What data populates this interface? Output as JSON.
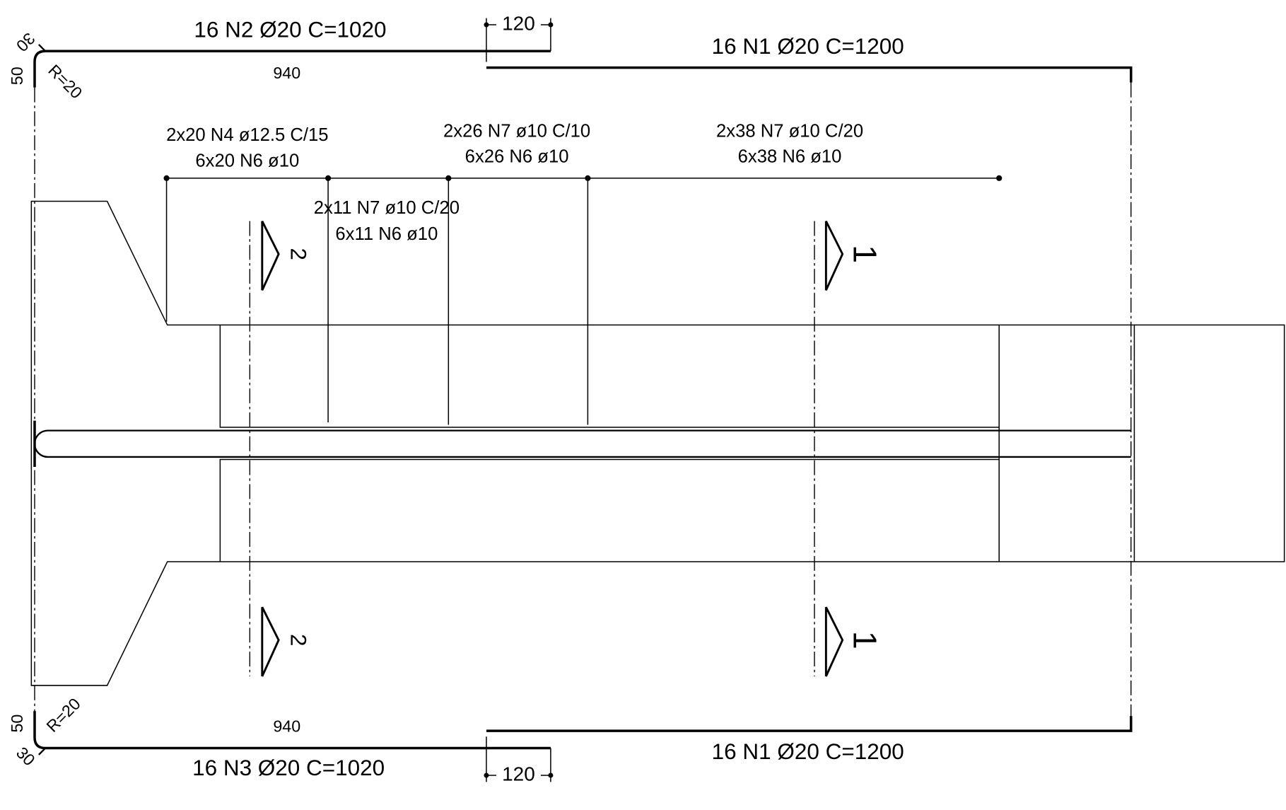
{
  "bars": {
    "top_left": {
      "label": "16 N2 Ø20 C=1020",
      "length": "940",
      "hook": "30",
      "leg": "50",
      "radius": "R=20"
    },
    "top_right": {
      "label": "16 N1 Ø20 C=1200",
      "overlap": "120"
    },
    "bottom_left": {
      "label": "16 N3 Ø20 C=1020",
      "length": "940",
      "hook": "30",
      "leg": "50",
      "radius": "R=20"
    },
    "bottom_right": {
      "label": "16 N1 Ø20 C=1200",
      "overlap": "120"
    }
  },
  "stirrups": [
    {
      "line1": "2x20 N4 ø12.5 C/15",
      "line2": "6x20 N6 ø10"
    },
    {
      "line1": "2x11 N7 ø10 C/20",
      "line2": "6x11 N6 ø10"
    },
    {
      "line1": "2x26 N7 ø10 C/10",
      "line2": "6x26 N6 ø10"
    },
    {
      "line1": "2x38 N7 ø10 C/20",
      "line2": "6x38 N6 ø10"
    }
  ],
  "sections": [
    {
      "label": "2"
    },
    {
      "label": "2"
    },
    {
      "label": "1"
    },
    {
      "label": "1"
    }
  ]
}
